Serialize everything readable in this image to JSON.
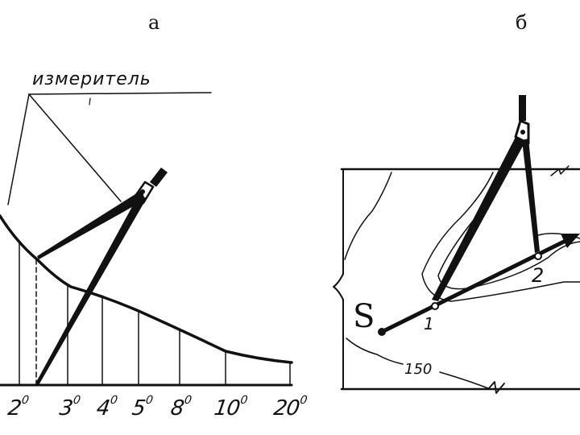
{
  "panels": {
    "a": {
      "label": "а"
    },
    "b": {
      "label": "б"
    }
  },
  "left_diagram": {
    "callout_text": "измеритель",
    "scale_labels": [
      {
        "num": "2",
        "deg": "0"
      },
      {
        "num": "3",
        "deg": "0"
      },
      {
        "num": "4",
        "deg": "0"
      },
      {
        "num": "5",
        "deg": "0"
      },
      {
        "num": "8",
        "deg": "0"
      },
      {
        "num": "10",
        "deg": "0"
      },
      {
        "num": "20",
        "deg": "0"
      }
    ]
  },
  "right_diagram": {
    "start_label": "S",
    "point_1_label": "1",
    "point_2_label": "2",
    "contour_label": "150"
  }
}
